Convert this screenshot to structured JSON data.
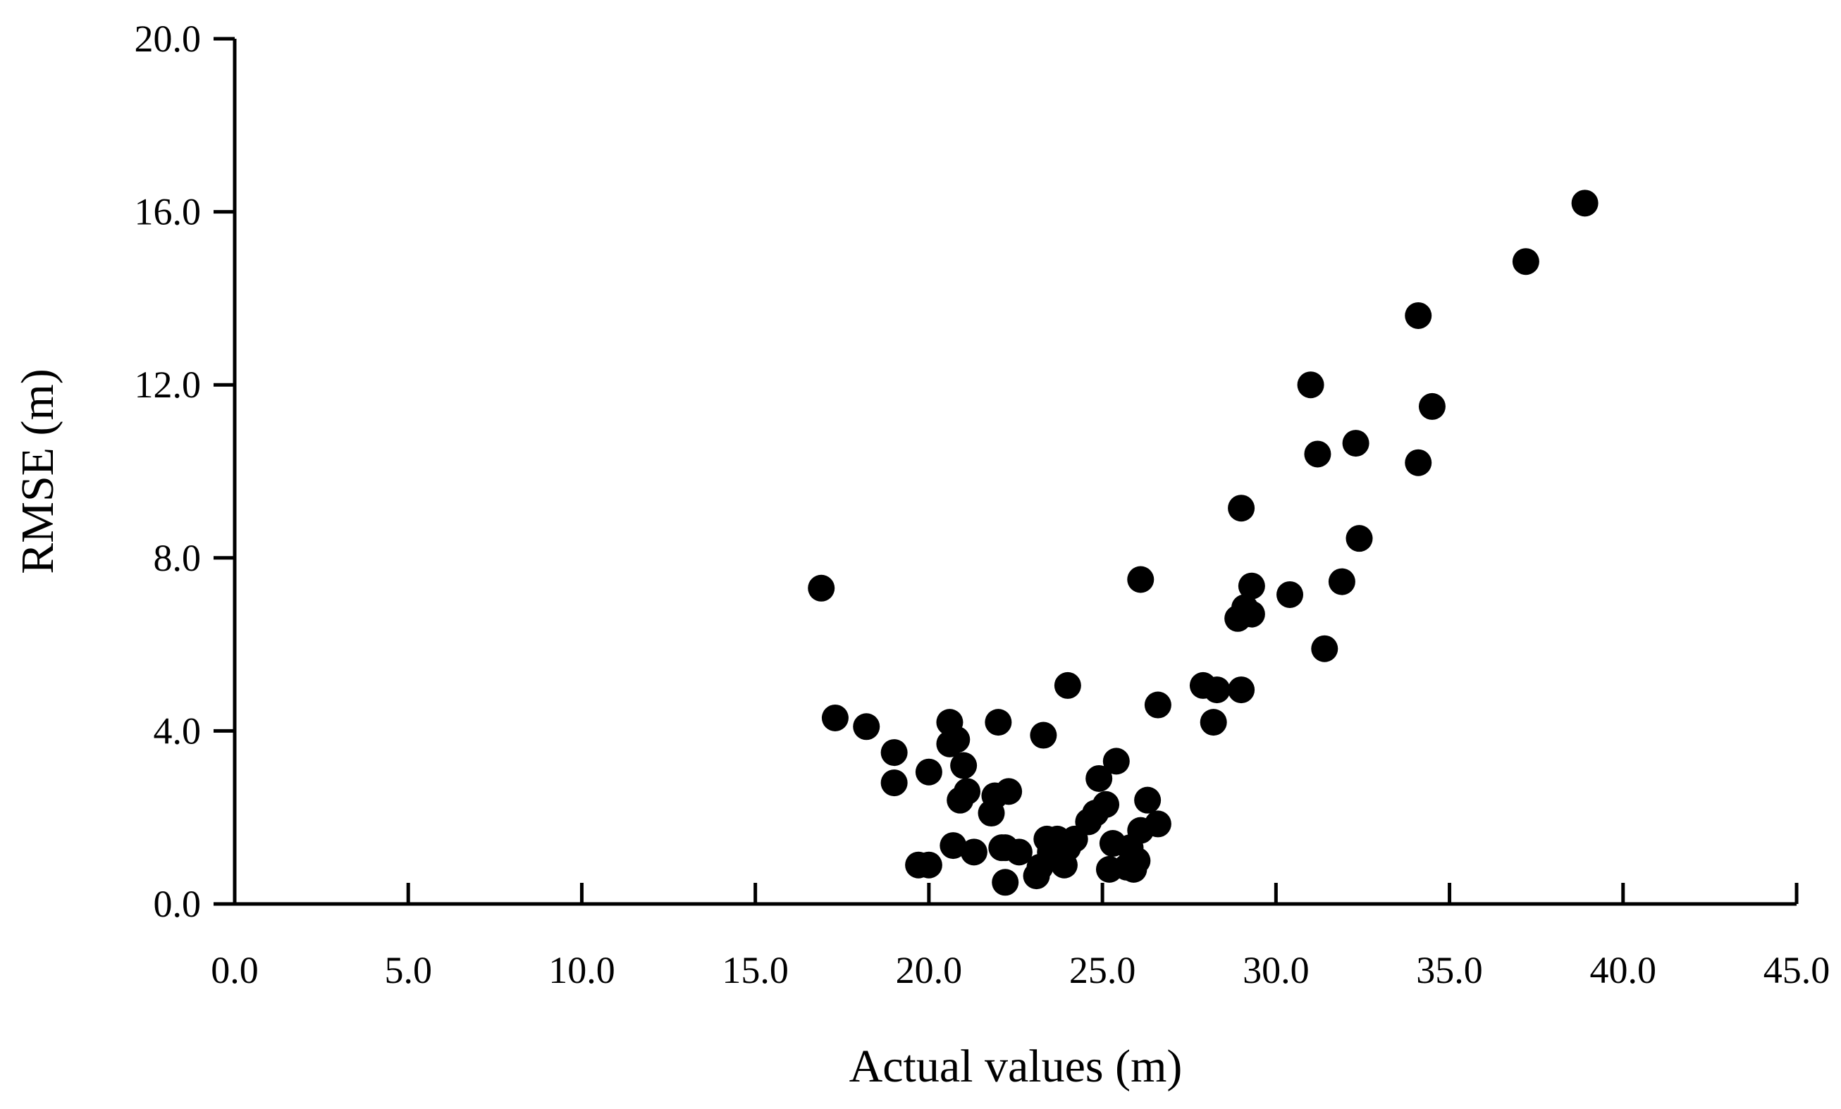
{
  "chart_data": {
    "type": "scatter",
    "title": "",
    "xlabel": "Actual values (m)",
    "ylabel": "RMSE (m)",
    "xlim": [
      0,
      45
    ],
    "ylim": [
      0,
      20
    ],
    "x_ticks": [
      0,
      5,
      10,
      15,
      20,
      25,
      30,
      35,
      40,
      45
    ],
    "y_ticks": [
      0,
      4,
      8,
      12,
      16,
      20
    ],
    "x_tick_labels": [
      "0.0",
      "5.0",
      "10.0",
      "15.0",
      "20.0",
      "25.0",
      "30.0",
      "35.0",
      "40.0",
      "45.0"
    ],
    "y_tick_labels": [
      "0.0",
      "4.0",
      "8.0",
      "12.0",
      "16.0",
      "20.0"
    ],
    "grid": false,
    "legend": "none",
    "marker_color": "#000000",
    "series": [
      {
        "x": [
          16.9,
          17.3,
          18.2,
          19.0,
          19.0,
          19.7,
          20.0,
          20.0,
          20.6,
          20.6,
          20.7,
          20.8,
          20.9,
          21.0,
          21.1,
          21.3,
          21.8,
          21.9,
          22.0,
          22.1,
          22.2,
          22.3,
          22.2,
          22.6,
          23.1,
          23.2,
          23.3,
          23.4,
          23.5,
          23.7,
          23.9,
          24.0,
          24.0,
          24.2,
          24.6,
          24.8,
          24.9,
          25.1,
          25.2,
          25.3,
          25.4,
          25.7,
          25.8,
          25.9,
          26.0,
          26.1,
          26.1,
          26.3,
          26.6,
          26.6,
          27.9,
          28.2,
          28.3,
          28.9,
          29.0,
          29.0,
          29.1,
          29.3,
          29.3,
          30.4,
          31.0,
          31.2,
          31.4,
          31.9,
          32.3,
          32.4,
          34.1,
          34.1,
          34.5,
          37.2,
          38.9
        ],
        "y": [
          7.3,
          4.3,
          4.1,
          3.5,
          2.8,
          0.9,
          3.05,
          0.9,
          4.2,
          3.7,
          1.35,
          3.8,
          2.4,
          3.2,
          2.6,
          1.2,
          2.1,
          2.5,
          4.2,
          1.3,
          0.5,
          2.6,
          1.3,
          1.2,
          0.65,
          0.85,
          3.9,
          1.5,
          1.2,
          1.5,
          0.9,
          1.3,
          5.05,
          1.5,
          1.9,
          2.1,
          2.9,
          2.3,
          0.8,
          1.4,
          3.3,
          0.85,
          1.3,
          0.8,
          1.0,
          7.5,
          1.7,
          2.4,
          4.6,
          1.85,
          5.05,
          4.2,
          4.95,
          6.6,
          9.15,
          4.95,
          6.85,
          6.7,
          7.35,
          7.15,
          12.0,
          10.4,
          5.9,
          7.45,
          10.65,
          8.45,
          13.6,
          10.2,
          11.5,
          14.85,
          16.2
        ]
      }
    ]
  }
}
